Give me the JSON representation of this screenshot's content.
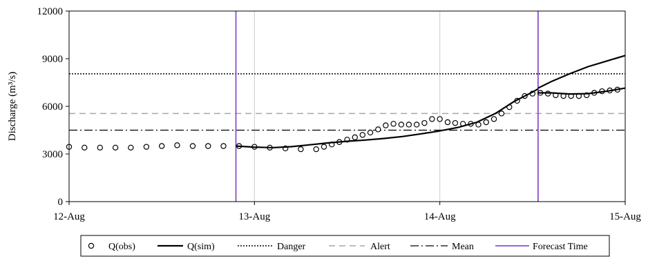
{
  "chart_data": {
    "type": "line",
    "ylabel": "Discharge (m³/s)",
    "xlabel": "",
    "ylim": [
      0,
      12000
    ],
    "y_ticks": [
      "0",
      "3000",
      "6000",
      "9000",
      "12000"
    ],
    "y_tick_values": [
      0,
      3000,
      6000,
      9000,
      12000
    ],
    "xlim": [
      0,
      3
    ],
    "x_ticks": [
      "12-Aug",
      "13-Aug",
      "14-Aug",
      "15-Aug"
    ],
    "x_tick_values": [
      0,
      1,
      2,
      3
    ],
    "grid": "vertical",
    "legend_position": "bottom",
    "thresholds": {
      "danger": 8050,
      "alert": 5550,
      "mean": 4500
    },
    "forecast_times": [
      0.9,
      2.53
    ],
    "series": [
      {
        "name": "Q(obs)",
        "style": "open-circle",
        "color": "#000000",
        "x": [
          0,
          0.083,
          0.167,
          0.25,
          0.333,
          0.417,
          0.5,
          0.583,
          0.667,
          0.75,
          0.833,
          0.917,
          1.0,
          1.083,
          1.167,
          1.25,
          1.333,
          1.375,
          1.417,
          1.458,
          1.5,
          1.542,
          1.583,
          1.625,
          1.667,
          1.708,
          1.75,
          1.792,
          1.833,
          1.875,
          1.917,
          1.958,
          2.0,
          2.042,
          2.083,
          2.125,
          2.167,
          2.208,
          2.25,
          2.292,
          2.333,
          2.375,
          2.417,
          2.458,
          2.5,
          2.542,
          2.583,
          2.625,
          2.667,
          2.708,
          2.75,
          2.792,
          2.833,
          2.875,
          2.917,
          2.958
        ],
        "y": [
          3450,
          3400,
          3400,
          3400,
          3400,
          3450,
          3500,
          3550,
          3500,
          3500,
          3500,
          3500,
          3450,
          3400,
          3350,
          3300,
          3300,
          3450,
          3600,
          3750,
          3900,
          4050,
          4200,
          4350,
          4550,
          4800,
          4900,
          4850,
          4850,
          4850,
          4950,
          5200,
          5200,
          5000,
          4950,
          4900,
          4900,
          4850,
          5000,
          5200,
          5550,
          5950,
          6350,
          6650,
          6800,
          6850,
          6800,
          6700,
          6650,
          6650,
          6650,
          6700,
          6850,
          6950,
          7000,
          7050
        ]
      },
      {
        "name": "Q(sim)",
        "style": "solid",
        "color": "#000000",
        "x": [
          0.9,
          1.0,
          1.1,
          1.2,
          1.3,
          1.4,
          1.5,
          1.6,
          1.7,
          1.8,
          1.9,
          2.0,
          2.1,
          2.2,
          2.3,
          2.4,
          2.5,
          2.53
        ],
        "y": [
          3500,
          3430,
          3400,
          3460,
          3580,
          3700,
          3800,
          3880,
          3980,
          4100,
          4270,
          4450,
          4680,
          5000,
          5550,
          6300,
          6900,
          7100
        ]
      },
      {
        "name": "Q(sim)",
        "style": "solid",
        "color": "#000000",
        "x": [
          2.53,
          2.6,
          2.7,
          2.8,
          2.9,
          3.0
        ],
        "y": [
          7150,
          7550,
          8050,
          8500,
          8850,
          9200
        ]
      },
      {
        "name": "Q(sim)",
        "style": "solid",
        "color": "#000000",
        "x": [
          2.53,
          2.6,
          2.7,
          2.8,
          2.9,
          3.0
        ],
        "y": [
          6850,
          6850,
          6780,
          6800,
          6950,
          7150
        ]
      }
    ],
    "legend": [
      {
        "label": "Q(obs)",
        "style": "open-circle"
      },
      {
        "label": "Q(sim)",
        "style": "solid"
      },
      {
        "label": "Danger",
        "style": "dotted"
      },
      {
        "label": "Alert",
        "style": "dashed-gray"
      },
      {
        "label": "Mean",
        "style": "dash-dot"
      },
      {
        "label": "Forecast Time",
        "style": "purple"
      }
    ],
    "colors": {
      "forecast": "#8a4fc8",
      "alert": "#a6a6a6",
      "grid": "#cccccc",
      "line": "#000000"
    }
  }
}
